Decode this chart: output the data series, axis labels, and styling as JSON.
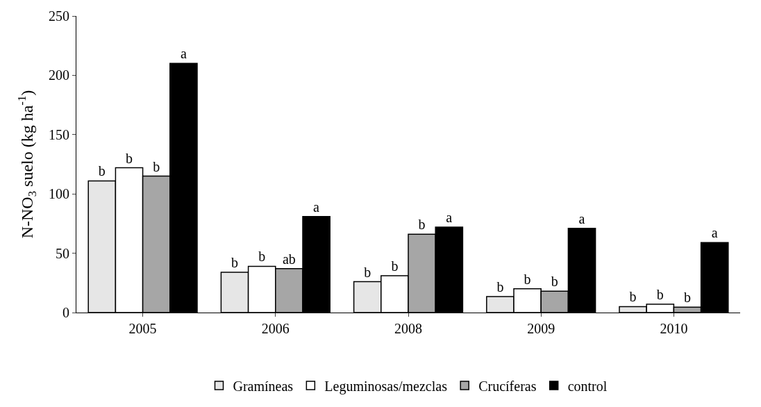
{
  "chart_data": {
    "type": "bar",
    "ylabel": "N-NO$_{3}$ suelo (kg ha$^{-1}$)",
    "categories": [
      "2005",
      "2006",
      "2008",
      "2009",
      "2010"
    ],
    "series": [
      {
        "name": "Gramíneas",
        "color": "#e6e6e6",
        "values": [
          111,
          34,
          26,
          13.5,
          5
        ],
        "value_labels": [
          "b",
          "b",
          "b",
          "b",
          "b"
        ]
      },
      {
        "name": "Leguminosas/mezclas",
        "color": "#ffffff",
        "values": [
          122,
          39,
          31,
          20,
          7
        ],
        "value_labels": [
          "b",
          "b",
          "b",
          "b",
          "b"
        ]
      },
      {
        "name": "Crucíferas",
        "color": "#a6a6a6",
        "values": [
          115,
          37,
          66,
          18,
          4.5
        ],
        "value_labels": [
          "b",
          "ab",
          "b",
          "b",
          "b"
        ]
      },
      {
        "name": "control",
        "color": "#000000",
        "values": [
          210,
          81,
          72,
          71,
          59
        ],
        "value_labels": [
          "a",
          "a",
          "a",
          "a",
          "a"
        ]
      }
    ],
    "ylim": [
      0,
      250
    ],
    "yticks": [
      0,
      50,
      100,
      150,
      200,
      250
    ],
    "grid": false,
    "legend": "bottom"
  }
}
